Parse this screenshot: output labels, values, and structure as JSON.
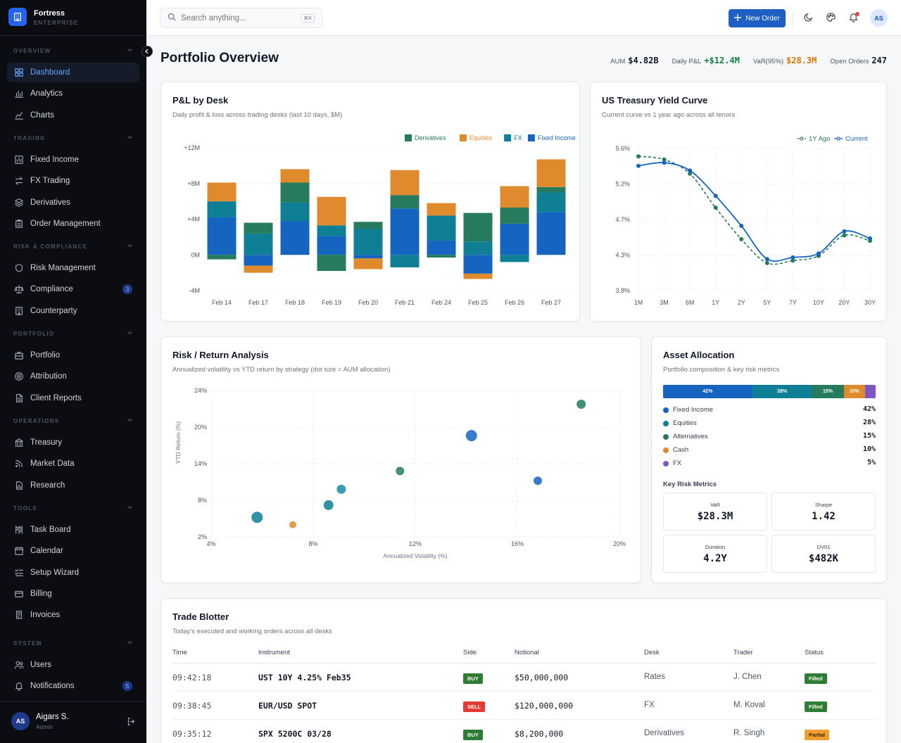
{
  "app": {
    "name": "Fortress",
    "edition": "ENTERPRISE"
  },
  "sidebar": {
    "sections": [
      {
        "title": "OVERVIEW",
        "items": [
          {
            "label": "Dashboard",
            "icon": "grid-icon",
            "active": true
          },
          {
            "label": "Analytics",
            "icon": "bar-chart-icon"
          },
          {
            "label": "Charts",
            "icon": "line-chart-icon"
          }
        ]
      },
      {
        "title": "TRADING",
        "items": [
          {
            "label": "Fixed Income",
            "icon": "chart-box-icon"
          },
          {
            "label": "FX Trading",
            "icon": "swap-arrows-icon"
          },
          {
            "label": "Derivatives",
            "icon": "layers-icon"
          },
          {
            "label": "Order Management",
            "icon": "clipboard-icon"
          }
        ]
      },
      {
        "title": "RISK & COMPLIANCE",
        "items": [
          {
            "label": "Risk Management",
            "icon": "shield-icon"
          },
          {
            "label": "Compliance",
            "icon": "scale-icon",
            "badge": "3"
          },
          {
            "label": "Counterparty",
            "icon": "building-icon"
          }
        ]
      },
      {
        "title": "PORTFOLIO",
        "items": [
          {
            "label": "Portfolio",
            "icon": "briefcase-icon"
          },
          {
            "label": "Attribution",
            "icon": "target-icon"
          },
          {
            "label": "Client Reports",
            "icon": "document-icon"
          }
        ]
      },
      {
        "title": "OPERATIONS",
        "items": [
          {
            "label": "Treasury",
            "icon": "bank-icon"
          },
          {
            "label": "Market Data",
            "icon": "rss-icon"
          },
          {
            "label": "Research",
            "icon": "file-chart-icon"
          }
        ]
      },
      {
        "title": "TOOLS",
        "items": [
          {
            "label": "Task Board",
            "icon": "kanban-icon"
          },
          {
            "label": "Calendar",
            "icon": "calendar-icon"
          },
          {
            "label": "Setup Wizard",
            "icon": "checklist-icon"
          },
          {
            "label": "Billing",
            "icon": "credit-card-icon"
          },
          {
            "label": "Invoices",
            "icon": "receipt-icon"
          }
        ]
      },
      {
        "title": "SYSTEM",
        "items": [
          {
            "label": "Users",
            "icon": "users-icon"
          },
          {
            "label": "Notifications",
            "icon": "bell-icon",
            "badge": "5"
          }
        ]
      }
    ],
    "user": {
      "initials": "AS",
      "name": "Aigars S.",
      "role": "Admin"
    }
  },
  "topbar": {
    "search_placeholder": "Search anything...",
    "search_shortcut": "⌘K",
    "new_order_label": "New Order",
    "avatar_initials": "AS"
  },
  "header": {
    "title": "Portfolio Overview",
    "stats": [
      {
        "label": "AUM",
        "value": "$4.82B",
        "color": "#111827"
      },
      {
        "label": "Daily P&L",
        "value": "+$12.4M",
        "color": "#15803d"
      },
      {
        "label": "VaR(95%)",
        "value": "$28.3M",
        "color": "#d97706"
      },
      {
        "label": "Open Orders",
        "value": "247",
        "color": "#111827"
      }
    ]
  },
  "pnl_card": {
    "title": "P&L by Desk",
    "subtitle": "Daily profit & loss across trading desks (last 10 days, $M)"
  },
  "yield_card": {
    "title": "US Treasury Yield Curve",
    "subtitle": "Current curve vs 1 year ago across all tenors"
  },
  "risk_card": {
    "title": "Risk / Return Analysis",
    "subtitle": "Annualized volatility vs YTD return by strategy (dot size = AUM allocation)"
  },
  "allocation_card": {
    "title": "Asset Allocation",
    "subtitle": "Portfolio composition & key risk metrics",
    "items": [
      {
        "name": "Fixed Income",
        "pct": "42%",
        "value": 42,
        "color": "#1565c0"
      },
      {
        "name": "Equities",
        "pct": "28%",
        "value": 28,
        "color": "#0e7f95"
      },
      {
        "name": "Alternatives",
        "pct": "15%",
        "value": 15,
        "color": "#267a5e"
      },
      {
        "name": "Cash",
        "pct": "10%",
        "value": 10,
        "color": "#e08a2e"
      },
      {
        "name": "FX",
        "pct": "5%",
        "value": 5,
        "color": "#7e57c2"
      }
    ],
    "metrics_title": "Key Risk Metrics",
    "metrics": [
      {
        "label": "VaR",
        "value": "$28.3M"
      },
      {
        "label": "Sharpe",
        "value": "1.42"
      },
      {
        "label": "Duration",
        "value": "4.2Y"
      },
      {
        "label": "DV01",
        "value": "$482K"
      }
    ]
  },
  "trade_blotter": {
    "title": "Trade Blotter",
    "subtitle": "Today's executed and working orders across all desks",
    "columns": [
      "Time",
      "Instrument",
      "Side",
      "Notional",
      "Desk",
      "Trader",
      "Status"
    ],
    "rows": [
      {
        "time": "09:42:18",
        "instrument": "UST 10Y 4.25% Feb35",
        "side": "BUY",
        "notional": "$50,000,000",
        "desk": "Rates",
        "trader": "J. Chen",
        "status": "Filled"
      },
      {
        "time": "09:38:45",
        "instrument": "EUR/USD SPOT",
        "side": "SELL",
        "notional": "$120,000,000",
        "desk": "FX",
        "trader": "M. Koval",
        "status": "Filled"
      },
      {
        "time": "09:35:12",
        "instrument": "SPX 5200C 03/28",
        "side": "BUY",
        "notional": "$8,200,000",
        "desk": "Derivatives",
        "trader": "R. Singh",
        "status": "Partial"
      }
    ]
  },
  "colors": {
    "accent": "#1d5fc2",
    "buy": "#2e7d32",
    "sell": "#e53935",
    "filled": "#2e7d32",
    "partial": "#f0a030"
  },
  "chart_data": [
    {
      "type": "bar",
      "stacked": true,
      "categories": [
        "Feb 14",
        "Feb 17",
        "Feb 18",
        "Feb 19",
        "Feb 20",
        "Feb 21",
        "Feb 24",
        "Feb 25",
        "Feb 26",
        "Feb 27"
      ],
      "series": [
        {
          "name": "Fixed Income",
          "color": "#1565c0",
          "values": [
            4.2,
            -1.2,
            3.8,
            2.1,
            -0.4,
            5.2,
            1.6,
            -2.1,
            3.5,
            4.8
          ]
        },
        {
          "name": "FX",
          "color": "#0e7f95",
          "values": [
            1.8,
            2.4,
            2.1,
            1.2,
            2.9,
            -1.4,
            2.8,
            1.5,
            -0.8,
            2.2
          ]
        },
        {
          "name": "Equities",
          "color": "#e08a2e",
          "values": [
            2.1,
            -0.8,
            1.5,
            3.2,
            -1.2,
            2.8,
            1.4,
            -0.6,
            2.4,
            3.1
          ]
        },
        {
          "name": "Derivatives",
          "color": "#267a5e",
          "values": [
            -0.5,
            1.2,
            2.2,
            -1.8,
            0.8,
            1.5,
            -0.3,
            3.2,
            1.8,
            0.6
          ]
        }
      ],
      "legend_order": [
        "Derivatives",
        "Equities",
        "FX",
        "Fixed Income"
      ],
      "y_ticks": [
        "+12M",
        "+8M",
        "+4M",
        "0M",
        "-4M"
      ],
      "ylim": [
        -4,
        12
      ],
      "legend": "top-right",
      "grid": true
    },
    {
      "type": "line",
      "categories": [
        "1M",
        "3M",
        "6M",
        "1Y",
        "2Y",
        "5Y",
        "7Y",
        "10Y",
        "20Y",
        "30Y"
      ],
      "series": [
        {
          "name": "Current",
          "color": "#1565c0",
          "style": "solid",
          "values": [
            5.38,
            5.42,
            5.32,
            5.0,
            4.62,
            4.2,
            4.22,
            4.27,
            4.55,
            4.46
          ]
        },
        {
          "name": "1Y Ago",
          "color": "#267a5e",
          "style": "dashed",
          "values": [
            5.5,
            5.46,
            5.28,
            4.85,
            4.45,
            4.15,
            4.18,
            4.24,
            4.5,
            4.43
          ]
        }
      ],
      "y_ticks": [
        "5.6%",
        "5.2%",
        "4.7%",
        "4.3%",
        "3.8%"
      ],
      "ylim": [
        3.8,
        5.6
      ],
      "legend": "top-right",
      "grid": true
    },
    {
      "type": "scatter",
      "xlabel": "Annualized Volatility (%)",
      "ylabel": "YTD Return (%)",
      "x_ticks": [
        "4%",
        "8%",
        "12%",
        "16%",
        "20%"
      ],
      "y_ticks": [
        "24%",
        "20%",
        "14%",
        "8%",
        "2%"
      ],
      "xlim": [
        4,
        20
      ],
      "ylim": [
        2,
        24
      ],
      "points": [
        {
          "x": 5.8,
          "y": 5.2,
          "size": 8,
          "color": "#0e7f95"
        },
        {
          "x": 7.2,
          "y": 4.0,
          "size": 5,
          "color": "#e08a2e"
        },
        {
          "x": 8.6,
          "y": 7.2,
          "size": 7,
          "color": "#0e7f95"
        },
        {
          "x": 9.1,
          "y": 9.8,
          "size": 6.5,
          "color": "#1a8aa8"
        },
        {
          "x": 11.4,
          "y": 12.8,
          "size": 6,
          "color": "#267a5e"
        },
        {
          "x": 14.2,
          "y": 18.6,
          "size": 8,
          "color": "#1565c0"
        },
        {
          "x": 16.8,
          "y": 11.2,
          "size": 6,
          "color": "#1565c0"
        },
        {
          "x": 18.5,
          "y": 22.5,
          "size": 6.5,
          "color": "#267a5e"
        }
      ],
      "grid": true
    }
  ]
}
